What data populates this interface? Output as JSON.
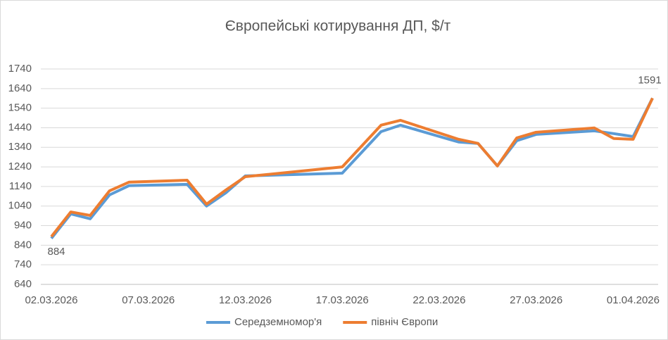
{
  "chart_data": {
    "type": "line",
    "title": "Європейські котирування ДП, $/т",
    "x": [
      "02.03.2026",
      "03.03.2026",
      "04.03.2026",
      "05.03.2026",
      "06.03.2026",
      "09.03.2026",
      "10.03.2026",
      "11.03.2026",
      "12.03.2026",
      "17.03.2026",
      "19.03.2026",
      "20.03.2026",
      "23.03.2026",
      "24.03.2026",
      "25.03.2026",
      "26.03.2026",
      "27.03.2026",
      "30.03.2026",
      "31.03.2026",
      "01.04.2026",
      "02.04.2026"
    ],
    "series": [
      {
        "name": "Середземномор'я",
        "color": "#5b9bd5",
        "values": [
          875,
          1000,
          975,
          1097,
          1144,
          1151,
          1040,
          1108,
          1194,
          1208,
          1420,
          1453,
          1367,
          1360,
          1245,
          1374,
          1406,
          1424,
          1410,
          1395,
          1591
        ]
      },
      {
        "name": "північ Європи",
        "color": "#ed7d31",
        "values": [
          884,
          1010,
          992,
          1118,
          1162,
          1172,
          1050,
          1122,
          1190,
          1240,
          1453,
          1478,
          1381,
          1360,
          1245,
          1388,
          1417,
          1439,
          1385,
          1381,
          1591
        ],
        "value_labels": [
          "884",
          null,
          null,
          null,
          null,
          null,
          null,
          null,
          null,
          null,
          null,
          null,
          null,
          null,
          null,
          null,
          null,
          null,
          null,
          null,
          "1591"
        ]
      }
    ],
    "xlim": [
      "02.03.2026",
      "02.04.2026"
    ],
    "xticks": [
      "02.03.2026",
      "07.03.2026",
      "12.03.2026",
      "17.03.2026",
      "22.03.2026",
      "27.03.2026",
      "01.04.2026"
    ],
    "ylim": [
      640,
      1740
    ],
    "yticks": [
      640,
      740,
      840,
      940,
      1040,
      1140,
      1240,
      1340,
      1440,
      1540,
      1640,
      1740
    ],
    "grid": true,
    "legend": "bottom"
  }
}
